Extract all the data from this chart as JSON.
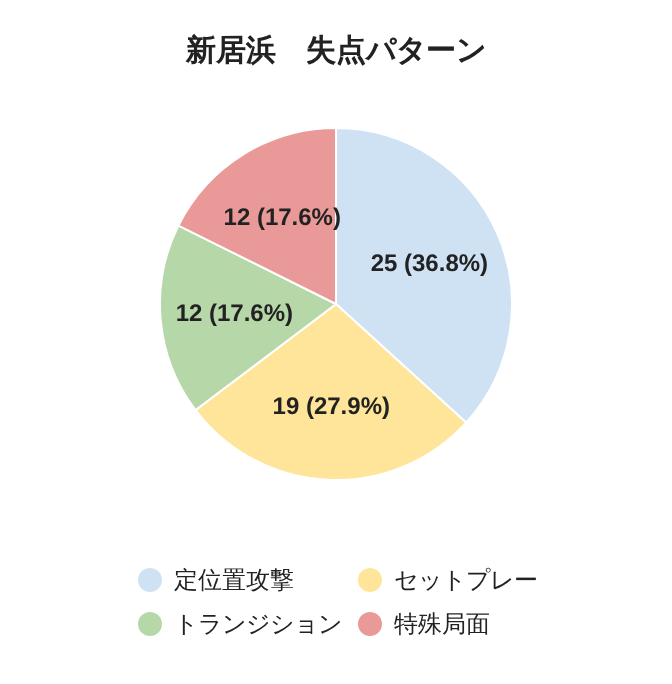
{
  "chart_data": {
    "type": "pie",
    "title": "新居浜　失点パターン",
    "categories": [
      "定位置攻撃",
      "セットプレー",
      "トランジション",
      "特殊局面"
    ],
    "values": [
      25,
      19,
      12,
      12
    ],
    "colors": [
      "#cfe2f3",
      "#ffe599",
      "#b6d7a8",
      "#ea9999"
    ],
    "value_labels": [
      "25 (36.8%)",
      "19 (27.9%)",
      "12 (17.6%)",
      "12 (17.6%)"
    ],
    "legend": "bottom"
  }
}
